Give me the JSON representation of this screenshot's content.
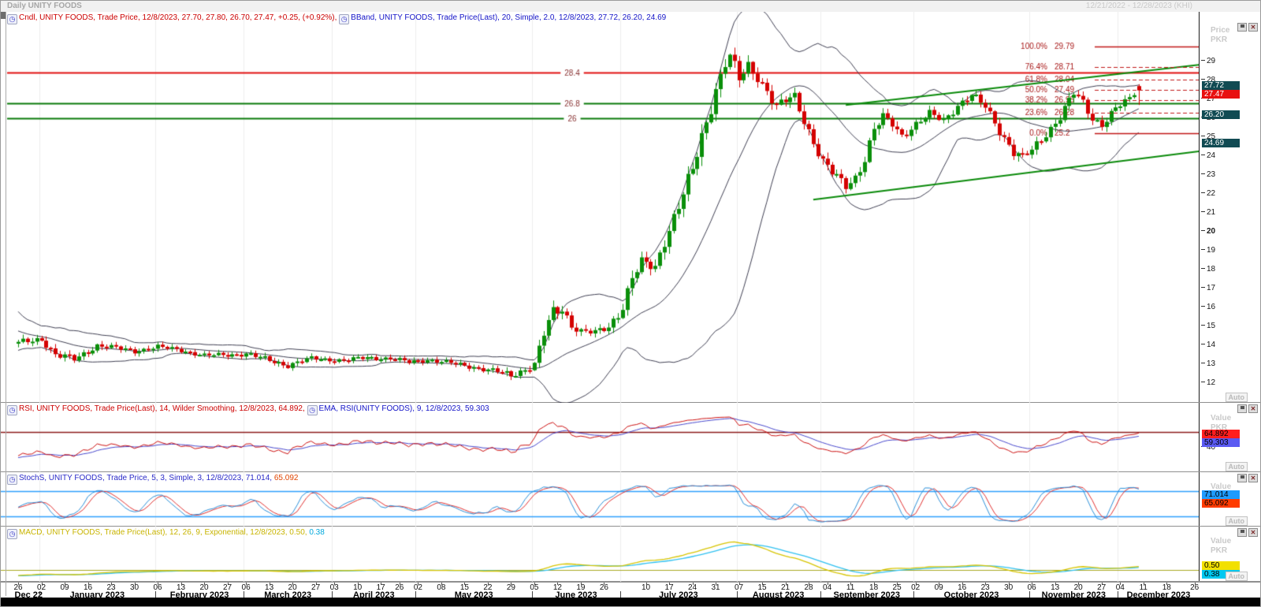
{
  "window": {
    "title": "Daily UNITY FOODS",
    "date_range": "12/21/2022 - 12/28/2023 (KHI)"
  },
  "axis_labels": {
    "auto": "Auto",
    "price": "Price",
    "value": "Value",
    "pkr": "PKR"
  },
  "price_panel": {
    "legend_cndl": "Cndl, UNITY FOODS, Trade Price,  12/8/2023, 27.70, 27.80, 26.70, 27.47, +0.25, (+0.92%), ",
    "legend_bband": "BBand, UNITY FOODS, Trade Price(Last),  20, Simple, 2.0,  12/8/2023, 27.72, 26.20, 24.69",
    "ticks": [
      29,
      28,
      27,
      26,
      25,
      24,
      23,
      22,
      21,
      20,
      19,
      18,
      17,
      16,
      15,
      14,
      13,
      12
    ],
    "bold_tick": 20,
    "badges": [
      {
        "text": "27.72",
        "bg": "#114b53",
        "fg": "#ffffff",
        "price": 27.72
      },
      {
        "text": "27.47",
        "bg": "#e81010",
        "fg": "#ffffff",
        "price": 27.47
      },
      {
        "text": "26.20",
        "bg": "#114b53",
        "fg": "#ffffff",
        "price": 26.2
      },
      {
        "text": "24.69",
        "bg": "#114b53",
        "fg": "#ffffff",
        "price": 24.69
      }
    ]
  },
  "rsi_panel": {
    "legend_rsi": "RSI, UNITY FOODS, Trade Price(Last),  14, Wilder Smoothing,  12/8/2023, 64.892, ",
    "legend_ema": "EMA, RSI(UNITY FOODS),  9,  12/8/2023, 59.303",
    "ticks": [
      40
    ],
    "badges": [
      {
        "text": "64.892",
        "bg": "#ff1e1e",
        "fg": "#000000",
        "value": 64.892
      },
      {
        "text": "59.303",
        "bg": "#5a5af2",
        "fg": "#000000",
        "value": 59.303
      }
    ]
  },
  "stoch_panel": {
    "legend_main": "StochS, UNITY FOODS, Trade Price,  5, 3, Simple, 3,  12/8/2023, 71.014, ",
    "legend_d": "65.092",
    "badges": [
      {
        "text": "71.014",
        "bg": "#1e9bff",
        "fg": "#000000",
        "value": 71.014
      },
      {
        "text": "65.092",
        "bg": "#ff3c00",
        "fg": "#000000",
        "value": 65.092
      }
    ]
  },
  "macd_panel": {
    "legend_main": "MACD, UNITY FOODS, Trade Price(Last),  12, 26, 9, Exponential,  12/8/2023, 0.50, ",
    "legend_sig": "0.38",
    "badges": [
      {
        "text": "0.50",
        "bg": "#f2e000",
        "fg": "#000000",
        "value": 0.5
      },
      {
        "text": "0.38",
        "bg": "#00c8f0",
        "fg": "#000000",
        "value": 0.38
      }
    ]
  },
  "colors": {
    "candle_up": "#0a8f0a",
    "candle_down": "#d40000",
    "bollinger": "#3f3f52",
    "resistance": "#e01010",
    "support": "#0a7a0a",
    "trendline": "#0a8a0a",
    "fib": "#c01818",
    "fib_label": "#a81818",
    "level_label": "#8a3535",
    "rsi_line": "#cc1111",
    "rsi_ema": "#4848cc",
    "rsi_level": "#8b1a1a",
    "stoch_k": "#2a8fd8",
    "stoch_d": "#e03030",
    "stoch_level": "#2e9ffd",
    "macd_line": "#d6c400",
    "macd_signal": "#2ec0f0",
    "macd_zero": "#a8a820",
    "grid": "#ececec"
  },
  "chart_data": {
    "type": "candlestick_with_indicators",
    "symbol": "UNITY FOODS",
    "timeframe": "Daily",
    "price_axis": {
      "min": 11.0,
      "max": 31.0
    },
    "last_candle": {
      "date": "12/8/2023",
      "open": 27.7,
      "high": 27.8,
      "low": 26.7,
      "close": 27.47,
      "change": "+0.25",
      "change_pct": "(+0.92%)"
    },
    "prev_close": 27.22,
    "bollinger": {
      "period": 20,
      "stdev": 2.0,
      "upper": 27.72,
      "middle": 26.2,
      "lower": 24.69
    },
    "pre_history_anchors": [
      [
        -30,
        17.8,
        0.5
      ],
      [
        -22,
        16.2,
        0.5
      ],
      [
        -14,
        15.0,
        0.4
      ],
      [
        -7,
        14.5,
        0.35
      ],
      [
        -1,
        14.15,
        0.3
      ]
    ],
    "price_path_anchors": [
      [
        0,
        14.1,
        0.3
      ],
      [
        5,
        14.35,
        0.3
      ],
      [
        8,
        13.5,
        0.35
      ],
      [
        12,
        13.25,
        0.3
      ],
      [
        17,
        14.0,
        0.25
      ],
      [
        21,
        13.85,
        0.22
      ],
      [
        25,
        13.7,
        0.22
      ],
      [
        30,
        13.9,
        0.22
      ],
      [
        35,
        13.75,
        0.2
      ],
      [
        40,
        13.45,
        0.2
      ],
      [
        45,
        13.5,
        0.2
      ],
      [
        49,
        13.55,
        0.22
      ],
      [
        54,
        13.2,
        0.25
      ],
      [
        58,
        12.95,
        0.25
      ],
      [
        63,
        13.3,
        0.2
      ],
      [
        67,
        13.25,
        0.2
      ],
      [
        70,
        13.2,
        0.2
      ],
      [
        75,
        13.35,
        0.2
      ],
      [
        80,
        13.3,
        0.2
      ],
      [
        84,
        13.1,
        0.2
      ],
      [
        88,
        13.25,
        0.2
      ],
      [
        93,
        13.05,
        0.2
      ],
      [
        98,
        12.85,
        0.22
      ],
      [
        103,
        12.6,
        0.25
      ],
      [
        106,
        12.4,
        0.3
      ],
      [
        109,
        12.75,
        0.3
      ],
      [
        111,
        13.0,
        0.35
      ],
      [
        113,
        14.6,
        0.6
      ],
      [
        115,
        15.7,
        0.55
      ],
      [
        117,
        15.9,
        0.45
      ],
      [
        119,
        15.1,
        0.4
      ],
      [
        121,
        14.75,
        0.35
      ],
      [
        124,
        14.65,
        0.3
      ],
      [
        127,
        14.95,
        0.35
      ],
      [
        130,
        16.1,
        0.55
      ],
      [
        132,
        17.6,
        0.6
      ],
      [
        134,
        18.3,
        0.55
      ],
      [
        137,
        18.1,
        0.5
      ],
      [
        139,
        19.6,
        0.6
      ],
      [
        142,
        21.4,
        0.65
      ],
      [
        145,
        23.2,
        0.7
      ],
      [
        148,
        25.8,
        0.75
      ],
      [
        150,
        27.6,
        0.7
      ],
      [
        152,
        29.0,
        0.65
      ],
      [
        153,
        29.3,
        0.6
      ],
      [
        155,
        28.0,
        0.6
      ],
      [
        157,
        28.7,
        0.55
      ],
      [
        159,
        28.2,
        0.5
      ],
      [
        161,
        27.5,
        0.5
      ],
      [
        163,
        26.6,
        0.5
      ],
      [
        165,
        26.9,
        0.45
      ],
      [
        167,
        27.1,
        0.45
      ],
      [
        169,
        25.9,
        0.5
      ],
      [
        171,
        24.8,
        0.5
      ],
      [
        173,
        23.7,
        0.5
      ],
      [
        175,
        23.1,
        0.45
      ],
      [
        178,
        22.4,
        0.4
      ],
      [
        180,
        22.9,
        0.45
      ],
      [
        182,
        23.9,
        0.5
      ],
      [
        184,
        25.4,
        0.5
      ],
      [
        186,
        26.0,
        0.45
      ],
      [
        188,
        25.7,
        0.4
      ],
      [
        190,
        25.1,
        0.38
      ],
      [
        193,
        25.7,
        0.35
      ],
      [
        196,
        26.2,
        0.35
      ],
      [
        199,
        25.9,
        0.35
      ],
      [
        202,
        26.7,
        0.35
      ],
      [
        205,
        27.2,
        0.35
      ],
      [
        208,
        26.6,
        0.4
      ],
      [
        211,
        25.4,
        0.45
      ],
      [
        214,
        24.2,
        0.45
      ],
      [
        216,
        23.9,
        0.4
      ],
      [
        218,
        24.3,
        0.38
      ],
      [
        221,
        25.2,
        0.4
      ],
      [
        224,
        26.1,
        0.42
      ],
      [
        227,
        27.3,
        0.42
      ],
      [
        229,
        26.8,
        0.4
      ],
      [
        231,
        26.0,
        0.4
      ],
      [
        233,
        25.7,
        0.38
      ],
      [
        236,
        26.5,
        0.35
      ],
      [
        239,
        27.0,
        0.32
      ],
      [
        241,
        27.47,
        0.3
      ]
    ],
    "days_total": 242,
    "levels": {
      "resistance": {
        "price": 28.4,
        "label": "28.4"
      },
      "supports": [
        {
          "price": 26.8,
          "label": "26.8"
        },
        {
          "price": 26.0,
          "label": "26"
        }
      ]
    },
    "fibonacci": [
      {
        "pct": "100.0%",
        "price_label": "29.79",
        "price": 29.79,
        "style": "solid"
      },
      {
        "pct": "76.4%",
        "price_label": "28.71",
        "price": 28.71,
        "style": "dashed"
      },
      {
        "pct": "61.8%",
        "price_label": "28.04",
        "price": 28.04,
        "style": "dashed"
      },
      {
        "pct": "50.0%",
        "price_label": "27.49",
        "price": 27.49,
        "style": "dashed"
      },
      {
        "pct": "38.2%",
        "price_label": "26.95",
        "price": 26.95,
        "style": "dashed"
      },
      {
        "pct": "23.6%",
        "price_label": "26.28",
        "price": 26.28,
        "style": "dashed"
      },
      {
        "pct": "0.0%",
        "price_label": "25.2",
        "price": 25.2,
        "style": "solid"
      }
    ],
    "trendlines": [
      {
        "d1": 178,
        "p1": 26.7,
        "d2": 254,
        "p2": 28.82
      },
      {
        "d1": 171,
        "p1": 21.7,
        "d2": 254,
        "p2": 24.25
      }
    ],
    "rsi": {
      "period": 14,
      "smoothing": "Wilder Smoothing",
      "value": 64.892,
      "ema_period": 9,
      "ema_value": 59.303,
      "level_line": 68
    },
    "stochastic": {
      "k": 5,
      "slowing": 3,
      "type": "Simple",
      "d": 3,
      "k_value": 71.014,
      "d_value": 65.092,
      "upper_level": 80,
      "lower_level": 20
    },
    "macd": {
      "fast": 12,
      "slow": 26,
      "signal": 9,
      "method": "Exponential",
      "value": 0.5,
      "signal_value": 0.38
    }
  },
  "xaxis": {
    "week_ticks": [
      {
        "l": "26",
        "d": 0
      },
      {
        "l": "02",
        "d": 5
      },
      {
        "l": "09",
        "d": 10
      },
      {
        "l": "16",
        "d": 15
      },
      {
        "l": "23",
        "d": 20
      },
      {
        "l": "30",
        "d": 25
      },
      {
        "l": "06",
        "d": 30
      },
      {
        "l": "13",
        "d": 35
      },
      {
        "l": "20",
        "d": 40
      },
      {
        "l": "27",
        "d": 45
      },
      {
        "l": "06",
        "d": 49
      },
      {
        "l": "13",
        "d": 54
      },
      {
        "l": "20",
        "d": 59
      },
      {
        "l": "27",
        "d": 64
      },
      {
        "l": "03",
        "d": 68
      },
      {
        "l": "10",
        "d": 73
      },
      {
        "l": "17",
        "d": 78
      },
      {
        "l": "26",
        "d": 82
      },
      {
        "l": "02",
        "d": 86
      },
      {
        "l": "08",
        "d": 91
      },
      {
        "l": "15",
        "d": 96
      },
      {
        "l": "22",
        "d": 101
      },
      {
        "l": "29",
        "d": 106
      },
      {
        "l": "05",
        "d": 111
      },
      {
        "l": "12",
        "d": 116
      },
      {
        "l": "19",
        "d": 121
      },
      {
        "l": "26",
        "d": 126
      },
      {
        "l": "10",
        "d": 135
      },
      {
        "l": "17",
        "d": 140
      },
      {
        "l": "24",
        "d": 145
      },
      {
        "l": "31",
        "d": 150
      },
      {
        "l": "07",
        "d": 155
      },
      {
        "l": "15",
        "d": 160
      },
      {
        "l": "21",
        "d": 165
      },
      {
        "l": "28",
        "d": 170
      },
      {
        "l": "04",
        "d": 174
      },
      {
        "l": "11",
        "d": 179
      },
      {
        "l": "18",
        "d": 184
      },
      {
        "l": "25",
        "d": 189
      },
      {
        "l": "02",
        "d": 193
      },
      {
        "l": "09",
        "d": 198
      },
      {
        "l": "16",
        "d": 203
      },
      {
        "l": "23",
        "d": 208
      },
      {
        "l": "30",
        "d": 213
      },
      {
        "l": "06",
        "d": 218
      },
      {
        "l": "13",
        "d": 223
      },
      {
        "l": "20",
        "d": 228
      },
      {
        "l": "27",
        "d": 233
      },
      {
        "l": "04",
        "d": 237
      },
      {
        "l": "11",
        "d": 242
      },
      {
        "l": "18",
        "d": 247
      },
      {
        "l": "26",
        "d": 253
      }
    ],
    "months": [
      {
        "label": "Dec 22",
        "d0": 0,
        "d1": 4.5
      },
      {
        "label": "January 2023",
        "d0": 4.5,
        "d1": 29.5
      },
      {
        "label": "February 2023",
        "d0": 29.5,
        "d1": 48.5
      },
      {
        "label": "March 2023",
        "d0": 48.5,
        "d1": 67.5
      },
      {
        "label": "April 2023",
        "d0": 67.5,
        "d1": 85.5
      },
      {
        "label": "May 2023",
        "d0": 85.5,
        "d1": 110.5
      },
      {
        "label": "June 2023",
        "d0": 110.5,
        "d1": 129.5
      },
      {
        "label": "July 2023",
        "d0": 129.5,
        "d1": 154.5
      },
      {
        "label": "August 2023",
        "d0": 154.5,
        "d1": 172.5
      },
      {
        "label": "September 2023",
        "d0": 172.5,
        "d1": 192.5
      },
      {
        "label": "October 2023",
        "d0": 192.5,
        "d1": 217.5
      },
      {
        "label": "November 2023",
        "d0": 217.5,
        "d1": 236.5
      },
      {
        "label": "December 2023",
        "d0": 236.5,
        "d1": 254
      }
    ]
  }
}
